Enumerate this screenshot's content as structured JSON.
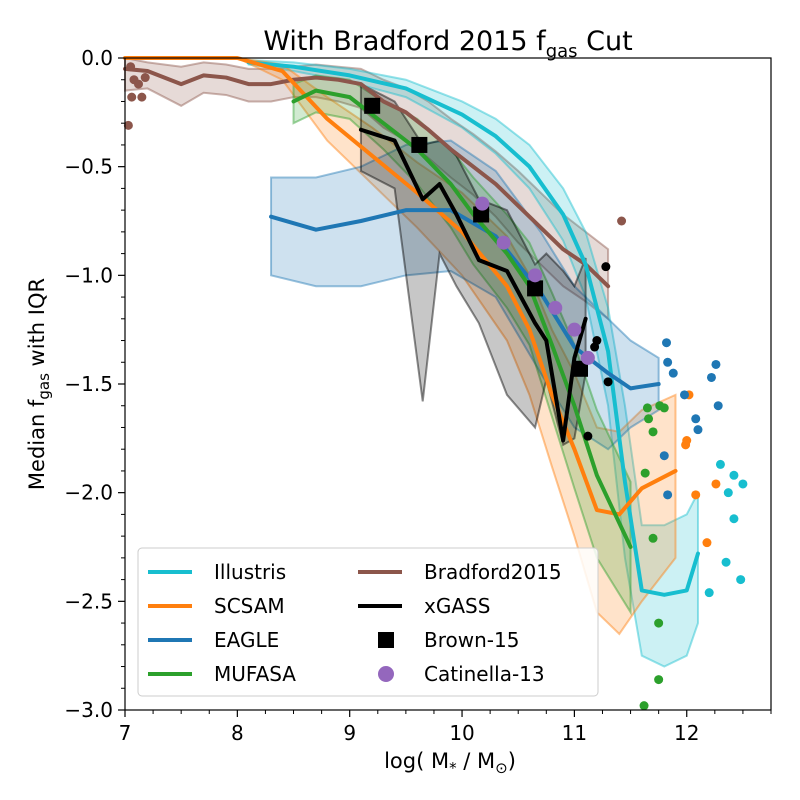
{
  "chart_data": {
    "type": "line",
    "title": {
      "main": "With Bradford 2015 f",
      "sub": "gas",
      "tail": " Cut"
    },
    "xlabel": {
      "pre": "log( M",
      "sub1": "*",
      "mid": " / M",
      "sub2": "⊙",
      "post": ")"
    },
    "ylabel": {
      "pre": "Median f",
      "sub": "gas",
      "post": "   with IQR"
    },
    "xlim": [
      7,
      12.75
    ],
    "ylim": [
      -3.0,
      0.0
    ],
    "xticks": [
      7,
      8,
      9,
      10,
      11,
      12
    ],
    "xtick_labels": [
      "7",
      "8",
      "9",
      "10",
      "11",
      "12"
    ],
    "yticks": [
      0.0,
      -0.5,
      -1.0,
      -1.5,
      -2.0,
      -2.5,
      -3.0
    ],
    "ytick_labels": [
      "0.0",
      "−0.5",
      "−1.0",
      "−1.5",
      "−2.0",
      "−2.5",
      "−3.0"
    ],
    "legend": {
      "placement": "lower-left",
      "entries": [
        "Illustris",
        "SCSAM",
        "EAGLE",
        "MUFASA",
        "Bradford2015",
        "xGASS",
        "Brown-15",
        "Catinella-13"
      ]
    },
    "series": [
      {
        "name": "Bradford2015",
        "color": "#8c564b",
        "x": [
          7.0,
          7.2,
          7.5,
          7.7,
          7.9,
          8.1,
          8.3,
          8.5,
          8.7,
          8.9,
          9.1,
          9.3,
          9.5,
          9.7,
          9.9,
          10.1,
          10.3,
          10.5,
          10.7,
          10.9,
          11.1,
          11.3
        ],
        "y": [
          -0.05,
          -0.06,
          -0.12,
          -0.08,
          -0.09,
          -0.12,
          -0.12,
          -0.1,
          -0.09,
          -0.1,
          -0.12,
          -0.2,
          -0.25,
          -0.33,
          -0.42,
          -0.5,
          -0.58,
          -0.68,
          -0.78,
          -0.88,
          -0.95,
          -1.05
        ],
        "lo": [
          -0.15,
          -0.14,
          -0.22,
          -0.16,
          -0.17,
          -0.2,
          -0.2,
          -0.18,
          -0.18,
          -0.2,
          -0.23,
          -0.32,
          -0.38,
          -0.46,
          -0.55,
          -0.63,
          -0.73,
          -0.85,
          -0.95,
          -1.05,
          -1.12,
          -1.2
        ],
        "hi": [
          0.0,
          -0.02,
          -0.04,
          -0.02,
          -0.03,
          -0.05,
          -0.05,
          -0.04,
          -0.03,
          -0.04,
          -0.05,
          -0.1,
          -0.14,
          -0.2,
          -0.28,
          -0.35,
          -0.43,
          -0.52,
          -0.62,
          -0.72,
          -0.8,
          -0.88
        ],
        "points": [
          [
            7.05,
            -0.04
          ],
          [
            7.08,
            -0.1
          ],
          [
            7.12,
            -0.12
          ],
          [
            7.18,
            -0.09
          ],
          [
            7.06,
            -0.18
          ],
          [
            7.15,
            -0.18
          ],
          [
            7.03,
            -0.31
          ],
          [
            11.42,
            -0.75
          ]
        ]
      },
      {
        "name": "Illustris",
        "color": "#17becf",
        "x": [
          8.1,
          8.5,
          9.0,
          9.5,
          10.0,
          10.3,
          10.6,
          10.9,
          11.1,
          11.3,
          11.45,
          11.6,
          11.8,
          12.0,
          12.1
        ],
        "y": [
          -0.02,
          -0.04,
          -0.08,
          -0.14,
          -0.26,
          -0.36,
          -0.5,
          -0.72,
          -0.95,
          -1.35,
          -1.95,
          -2.45,
          -2.47,
          -2.45,
          -2.28
        ],
        "lo": [
          -0.03,
          -0.06,
          -0.11,
          -0.18,
          -0.32,
          -0.44,
          -0.6,
          -0.84,
          -1.1,
          -1.6,
          -2.3,
          -2.75,
          -2.8,
          -2.75,
          -2.6
        ],
        "hi": [
          -0.01,
          -0.02,
          -0.05,
          -0.1,
          -0.2,
          -0.28,
          -0.4,
          -0.6,
          -0.8,
          -1.15,
          -1.6,
          -2.15,
          -2.15,
          -2.1,
          -2.0
        ],
        "points": [
          [
            12.3,
            -1.87
          ],
          [
            12.42,
            -1.92
          ],
          [
            12.5,
            -1.96
          ],
          [
            12.37,
            -2.0
          ],
          [
            12.42,
            -2.12
          ],
          [
            12.35,
            -2.32
          ],
          [
            12.48,
            -2.4
          ],
          [
            12.2,
            -2.46
          ]
        ]
      },
      {
        "name": "SCSAM",
        "color": "#ff7f0e",
        "x": [
          7.0,
          8.0,
          8.4,
          8.8,
          9.2,
          9.6,
          10.0,
          10.4,
          10.6,
          10.8,
          11.0,
          11.2,
          11.4,
          11.6,
          11.9
        ],
        "y": [
          0.0,
          0.0,
          -0.06,
          -0.28,
          -0.45,
          -0.62,
          -0.8,
          -1.05,
          -1.25,
          -1.55,
          -1.8,
          -2.08,
          -2.1,
          -1.98,
          -1.9
        ],
        "lo": [
          0.0,
          0.0,
          -0.1,
          -0.38,
          -0.58,
          -0.78,
          -1.0,
          -1.3,
          -1.55,
          -1.88,
          -2.2,
          -2.55,
          -2.65,
          -2.5,
          -2.3
        ],
        "hi": [
          0.0,
          0.0,
          -0.03,
          -0.18,
          -0.32,
          -0.48,
          -0.62,
          -0.82,
          -1.0,
          -1.25,
          -1.45,
          -1.7,
          -1.72,
          -1.62,
          -1.55
        ],
        "points": [
          [
            12.02,
            -1.55
          ],
          [
            11.99,
            -1.78
          ],
          [
            12.0,
            -1.76
          ],
          [
            12.08,
            -2.01
          ],
          [
            12.26,
            -1.96
          ],
          [
            12.18,
            -2.23
          ]
        ]
      },
      {
        "name": "EAGLE",
        "color": "#1f77b4",
        "x": [
          8.3,
          8.7,
          9.1,
          9.5,
          9.9,
          10.3,
          10.7,
          11.0,
          11.3,
          11.5,
          11.75
        ],
        "y": [
          -0.73,
          -0.79,
          -0.75,
          -0.7,
          -0.7,
          -0.82,
          -1.08,
          -1.33,
          -1.45,
          -1.52,
          -1.5
        ],
        "lo": [
          -1.0,
          -1.05,
          -1.05,
          -1.0,
          -0.98,
          -1.1,
          -1.45,
          -1.7,
          -1.8,
          -1.7,
          -1.62
        ],
        "hi": [
          -0.55,
          -0.55,
          -0.5,
          -0.4,
          -0.38,
          -0.52,
          -0.8,
          -1.05,
          -1.2,
          -1.3,
          -1.38
        ],
        "points": [
          [
            11.82,
            -1.31
          ],
          [
            11.83,
            -1.4
          ],
          [
            11.88,
            -1.45
          ],
          [
            11.98,
            -1.55
          ],
          [
            12.08,
            -1.66
          ],
          [
            12.1,
            -1.71
          ],
          [
            12.26,
            -1.41
          ],
          [
            12.22,
            -1.47
          ],
          [
            12.28,
            -1.6
          ],
          [
            11.8,
            -1.83
          ],
          [
            11.83,
            -2.01
          ]
        ]
      },
      {
        "name": "MUFASA",
        "color": "#2ca02c",
        "x": [
          8.5,
          8.7,
          9.0,
          9.3,
          9.6,
          9.9,
          10.1,
          10.4,
          10.6,
          10.8,
          11.0,
          11.2,
          11.5
        ],
        "y": [
          -0.2,
          -0.15,
          -0.18,
          -0.3,
          -0.42,
          -0.58,
          -0.72,
          -0.9,
          -1.05,
          -1.32,
          -1.6,
          -1.92,
          -2.25
        ],
        "lo": [
          -0.3,
          -0.25,
          -0.28,
          -0.42,
          -0.58,
          -0.78,
          -0.95,
          -1.15,
          -1.32,
          -1.65,
          -1.98,
          -2.3,
          -2.55
        ],
        "hi": [
          -0.12,
          -0.08,
          -0.1,
          -0.2,
          -0.28,
          -0.42,
          -0.55,
          -0.72,
          -0.85,
          -1.08,
          -1.32,
          -1.62,
          -1.95
        ],
        "points": [
          [
            11.76,
            -1.6
          ],
          [
            11.65,
            -1.61
          ],
          [
            11.66,
            -1.66
          ],
          [
            11.7,
            -1.72
          ],
          [
            11.8,
            -1.61
          ],
          [
            11.63,
            -1.91
          ],
          [
            11.7,
            -2.21
          ],
          [
            11.75,
            -2.6
          ],
          [
            11.75,
            -2.86
          ],
          [
            11.62,
            -2.98
          ]
        ]
      },
      {
        "name": "xGASS",
        "color": "#000000",
        "x": [
          9.1,
          9.4,
          9.65,
          9.8,
          9.95,
          10.15,
          10.4,
          10.65,
          10.75,
          10.9,
          11.0,
          11.1
        ],
        "y": [
          -0.33,
          -0.38,
          -0.65,
          -0.58,
          -0.72,
          -0.93,
          -0.98,
          -1.22,
          -1.3,
          -1.76,
          -1.38,
          -1.2
        ],
        "lo": [
          -0.52,
          -0.6,
          -1.58,
          -0.9,
          -1.05,
          -1.22,
          -1.55,
          -1.7,
          -1.48,
          -1.78,
          -1.75,
          -1.45
        ],
        "hi": [
          -0.12,
          -0.2,
          -0.4,
          -0.38,
          -0.45,
          -0.65,
          -0.7,
          -0.95,
          -0.9,
          -0.98,
          -1.05,
          -0.92
        ],
        "points": [
          [
            11.28,
            -0.96
          ],
          [
            11.2,
            -1.3
          ],
          [
            11.18,
            -1.33
          ],
          [
            11.12,
            -1.74
          ],
          [
            11.3,
            -1.49
          ]
        ]
      },
      {
        "name": "Brown-15",
        "color": "#000000",
        "marker": "square",
        "x": [
          9.2,
          9.62,
          10.17,
          10.65,
          11.05
        ],
        "y": [
          -0.22,
          -0.4,
          -0.72,
          -1.06,
          -1.43
        ]
      },
      {
        "name": "Catinella-13",
        "color": "#9467bd",
        "marker": "circle",
        "x": [
          10.18,
          10.37,
          10.65,
          10.83,
          11.0,
          11.12
        ],
        "y": [
          -0.67,
          -0.85,
          -1.0,
          -1.15,
          -1.25,
          -1.38
        ]
      }
    ]
  }
}
